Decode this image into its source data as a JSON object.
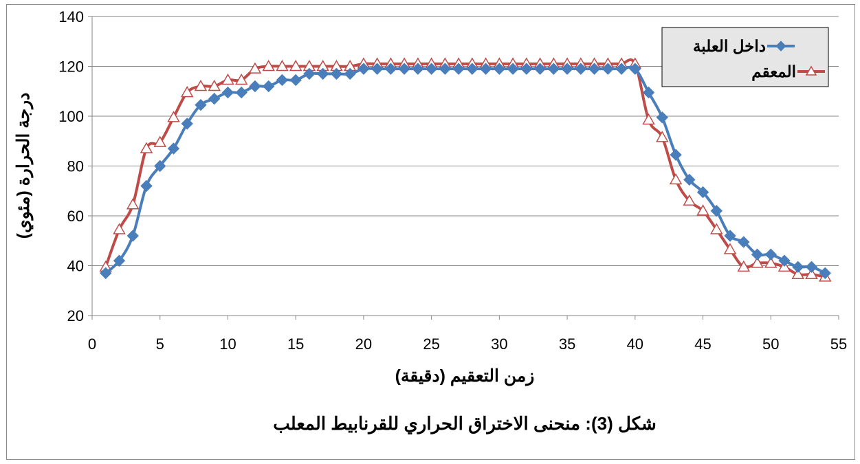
{
  "chart_data": {
    "type": "line",
    "title": "",
    "caption": "شكل (3): منحنى الاختراق الحراري للقرنابيط المعلب",
    "xlabel": "زمن التعقيم (دقيقة)",
    "ylabel": "درجة الحرارة (مئوي)",
    "xlim": [
      0,
      55
    ],
    "ylim": [
      20,
      140
    ],
    "xticks": [
      0,
      5,
      10,
      15,
      20,
      25,
      30,
      35,
      40,
      45,
      50,
      55
    ],
    "yticks": [
      20,
      40,
      60,
      80,
      100,
      120,
      140
    ],
    "grid": "horizontal",
    "legend_position": "top-right",
    "x": [
      1,
      2,
      3,
      4,
      5,
      6,
      7,
      8,
      9,
      10,
      11,
      12,
      13,
      14,
      15,
      16,
      17,
      18,
      19,
      20,
      21,
      22,
      23,
      24,
      25,
      26,
      27,
      28,
      29,
      30,
      31,
      32,
      33,
      34,
      35,
      36,
      37,
      38,
      39,
      40,
      41,
      42,
      43,
      44,
      45,
      46,
      47,
      48,
      49,
      50,
      51,
      52,
      53,
      54
    ],
    "series": [
      {
        "name": "داخل العلبة",
        "color": "#4a7ebb",
        "marker": "diamond",
        "values": [
          37,
          42,
          52,
          72,
          80,
          87,
          97,
          104.5,
          107,
          109.5,
          109.5,
          112,
          112,
          114.5,
          114.5,
          117,
          117,
          117,
          117,
          119,
          119,
          119,
          119,
          119,
          119,
          119,
          119,
          119,
          119,
          119,
          119,
          119,
          119,
          119,
          119,
          119,
          119,
          119,
          119,
          119,
          109.5,
          99.5,
          84.5,
          74.5,
          69.5,
          62,
          52,
          49.5,
          44.5,
          44.5,
          42,
          39.5,
          39.5,
          37
        ]
      },
      {
        "name": "المعقم",
        "color": "#be4b48",
        "marker": "triangle",
        "values": [
          39.5,
          54.5,
          64.5,
          87,
          89.5,
          99.5,
          109.5,
          112,
          112,
          114.5,
          114.5,
          119,
          120,
          120,
          120,
          120,
          120,
          120,
          120,
          121,
          121,
          121,
          121,
          121,
          121,
          121,
          121,
          121,
          121,
          121,
          121,
          121,
          121,
          121,
          121,
          121,
          121,
          121,
          121,
          121,
          98.5,
          91.5,
          74.5,
          66,
          62,
          54.5,
          46.5,
          39.5,
          41,
          41,
          39.5,
          36.5,
          36.5,
          35.5
        ]
      }
    ]
  }
}
